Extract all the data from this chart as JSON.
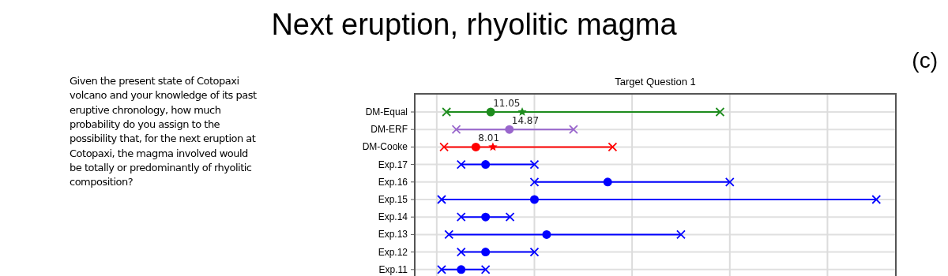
{
  "chart_data": {
    "type": "scatter",
    "orientation": "horizontal",
    "title": "Target Question 1",
    "annotations": [
      "Next eruption, rhyolitic magma",
      "(c)",
      "Given the present state of Cotopaxi volcano and your knowledge of its past eruptive chronology, how much probability do you assign to the possibility that, for the next eruption at Cotopaxi, the magma involved would be totally or predominantly of rhyolitic composition?"
    ],
    "categories": [
      "DM-Equal",
      "DM-ERF",
      "DM-Cooke",
      "Exp.17",
      "Exp.16",
      "Exp.15",
      "Exp.14",
      "Exp.13",
      "Exp.12",
      "Exp.11"
    ],
    "series": [
      {
        "type": "scatter",
        "marker": "circle",
        "colors": [
          "#1e8c1e",
          "#9966cc",
          "#ff0000",
          "#0000ff",
          "#0000ff",
          "#0000ff",
          "#0000ff",
          "#0000ff",
          "#0000ff",
          "#0000ff"
        ],
        "values": [
          11.05,
          14.87,
          8.01,
          10,
          35,
          20,
          10,
          22.5,
          10,
          5
        ],
        "value_labels": [
          "11.05",
          "14.87",
          "8.01",
          null,
          null,
          null,
          null,
          null,
          null,
          null
        ]
      },
      {
        "type": "scatter",
        "marker": "star",
        "colors": [
          "#1e8c1e",
          null,
          "#ff0000",
          null,
          null,
          null,
          null,
          null,
          null,
          null
        ],
        "values": [
          17.5,
          null,
          11.5,
          null,
          null,
          null,
          null,
          null,
          null,
          null
        ]
      },
      {
        "type": "scatter",
        "marker": "cross",
        "colors": [
          "#1e8c1e",
          "#9966cc",
          "#ff0000",
          "#0000ff",
          "#0000ff",
          "#0000ff",
          "#0000ff",
          "#0000ff",
          "#0000ff",
          "#0000ff"
        ],
        "values": [
          2,
          4,
          1.5,
          5,
          20,
          1,
          5,
          2.5,
          5,
          1
        ]
      },
      {
        "type": "scatter",
        "marker": "cross",
        "colors": [
          "#1e8c1e",
          "#9966cc",
          "#ff0000",
          "#0000ff",
          "#0000ff",
          "#0000ff",
          "#0000ff",
          "#0000ff",
          "#0000ff",
          "#0000ff"
        ],
        "values": [
          58,
          28,
          36,
          20,
          60,
          90,
          15,
          50,
          20,
          10
        ]
      }
    ],
    "xlim": [
      -4.5,
      94
    ],
    "xticks": [
      {
        "value": 0,
        "label": null
      },
      {
        "value": 20,
        "label": null
      },
      {
        "value": 40,
        "label": null
      },
      {
        "value": 60,
        "label": null
      },
      {
        "value": 80,
        "label": null
      }
    ],
    "grid": true,
    "tick_labels": "y"
  }
}
